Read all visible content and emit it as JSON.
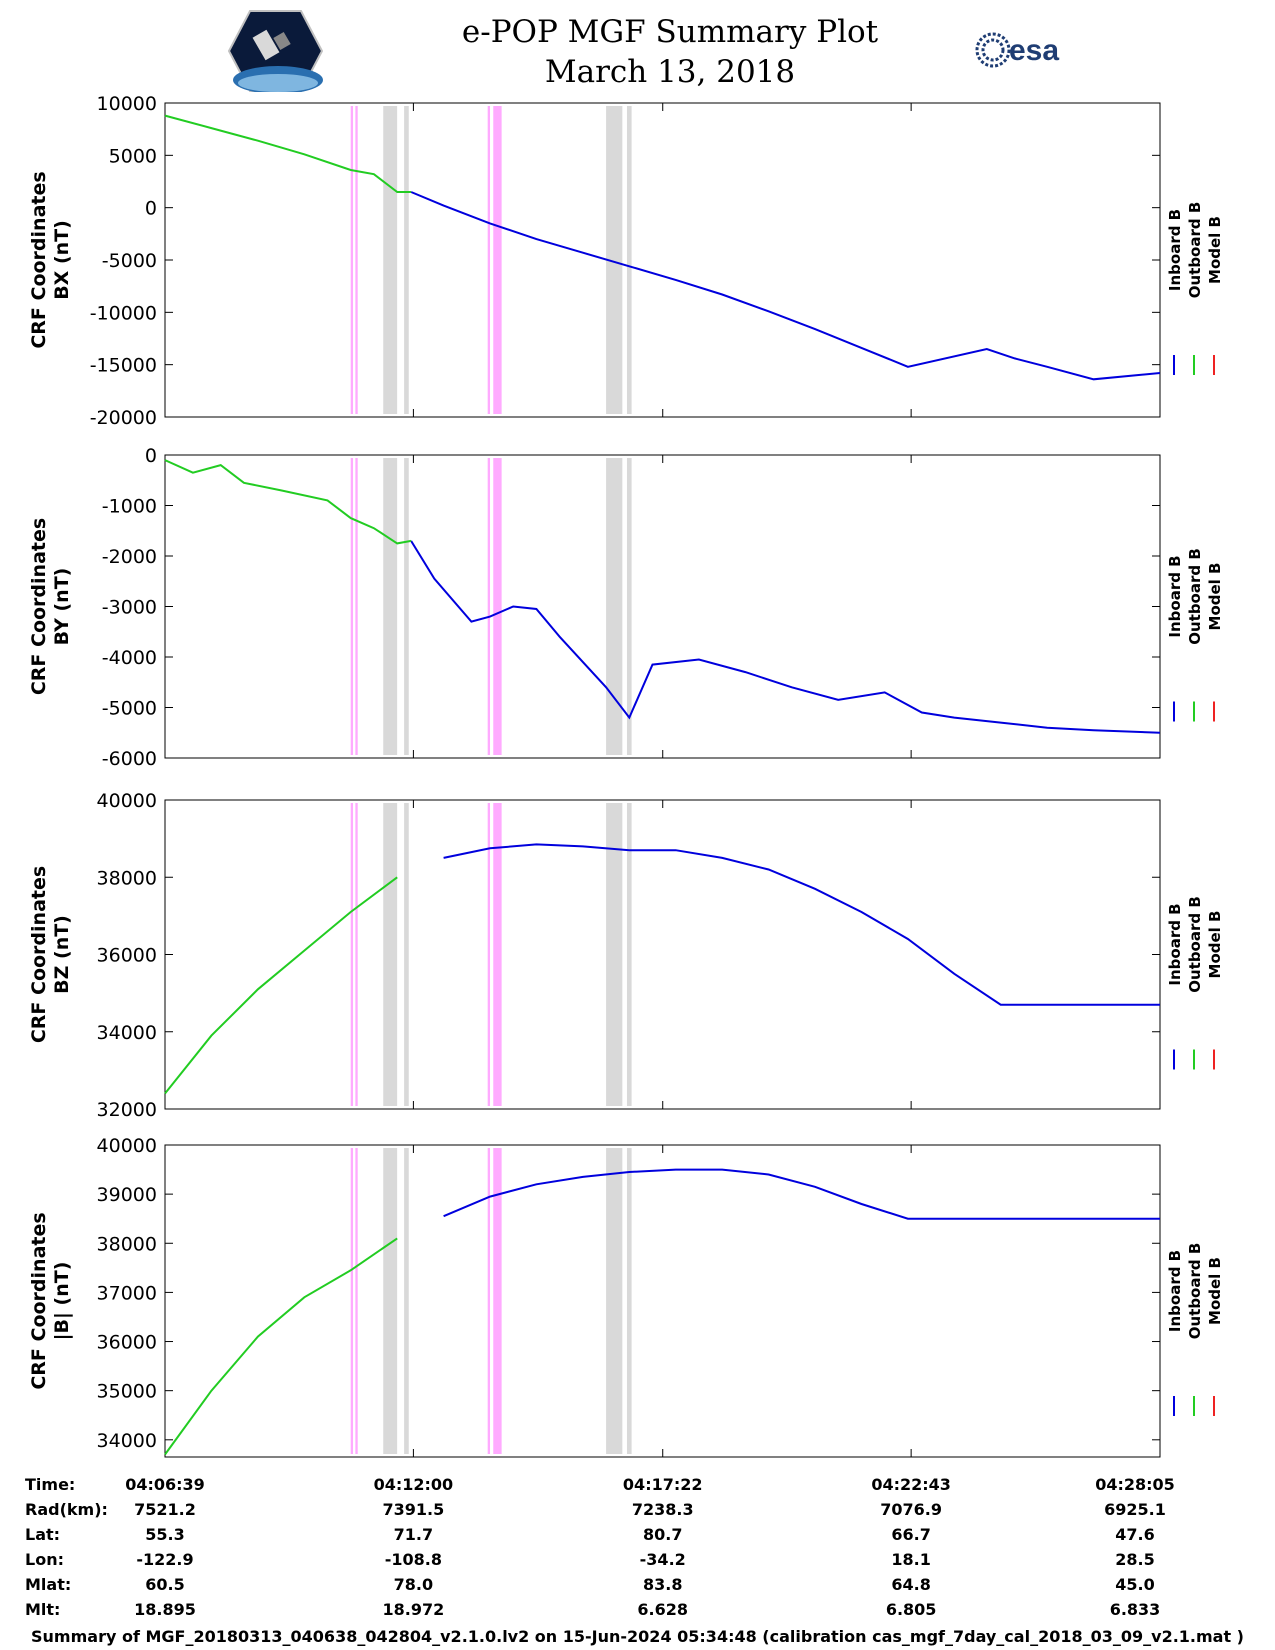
{
  "title": {
    "line1": "e-POP MGF Summary Plot",
    "line2": "March 13, 2018"
  },
  "logos": {
    "left": "cassiope-mission-logo",
    "right_text": "esa"
  },
  "colors": {
    "inboard": "#0000dd",
    "outboard": "#22cc22",
    "model": "#ee2222",
    "gray_band": "#d9d9d9",
    "pink_band": "#ffaaff"
  },
  "legend": [
    "Inboard B",
    "Outboard B",
    "Model B"
  ],
  "bands": {
    "gray": [
      [
        4.7,
        5.0
      ],
      [
        5.15,
        5.25
      ],
      [
        9.5,
        9.85
      ],
      [
        9.95,
        10.05
      ]
    ],
    "pink": [
      [
        4.0,
        4.05
      ],
      [
        4.1,
        4.15
      ],
      [
        6.95,
        7.0
      ],
      [
        7.07,
        7.25
      ]
    ]
  },
  "chart_data": [
    {
      "type": "line",
      "ylabel": "CRF Coordinates BX (nT)",
      "ylabel_lines": [
        "CRF Coordinates",
        "BX (nT)"
      ],
      "ylim": [
        -20000,
        10000
      ],
      "yticks": [
        10000,
        5000,
        0,
        -5000,
        -10000,
        -15000,
        -20000
      ],
      "x_minutes": [
        0,
        1,
        2,
        3,
        4,
        4.5,
        5,
        5.3,
        6,
        7,
        8,
        9,
        10,
        11,
        12,
        13,
        14,
        15,
        16,
        17.7,
        18.3,
        19,
        20,
        21.43
      ],
      "series": [
        {
          "name": "Inboard B",
          "segment": [
            5.3,
            21.43
          ],
          "values": [
            8800,
            7600,
            6400,
            5100,
            3600,
            3200,
            1500,
            1500,
            200,
            -1500,
            -3000,
            -4300,
            -5600,
            -6900,
            -8300,
            -9900,
            -11600,
            -13400,
            -15200,
            -13500,
            -14400,
            -15200,
            -16400,
            -15800
          ]
        },
        {
          "name": "Outboard B",
          "segment": [
            0,
            5.3
          ],
          "values": [
            8800,
            7600,
            6400,
            5100,
            3600,
            3200,
            1500,
            1500,
            200,
            -1500,
            -3000,
            -4300,
            -5600,
            -6900,
            -8300,
            -9900,
            -11600,
            -13400,
            -15200,
            -13500,
            -14400,
            -15200,
            -16400,
            -15800
          ]
        }
      ]
    },
    {
      "type": "line",
      "ylabel": "CRF Coordinates BY (nT)",
      "ylabel_lines": [
        "CRF Coordinates",
        "BY (nT)"
      ],
      "ylim": [
        -6000,
        0
      ],
      "yticks": [
        0,
        -1000,
        -2000,
        -3000,
        -4000,
        -5000,
        -6000
      ],
      "x_minutes": [
        0,
        0.6,
        1.2,
        1.7,
        2.5,
        3.5,
        4.0,
        4.5,
        5.0,
        5.3,
        5.8,
        6.6,
        7.0,
        7.5,
        8.0,
        8.5,
        9.5,
        10.0,
        10.5,
        11.5,
        12.5,
        13.5,
        14.5,
        15.5,
        16.3,
        17.0,
        18.0,
        19.0,
        20.0,
        21.43
      ],
      "series": [
        {
          "name": "Inboard B",
          "segment": [
            5.3,
            21.43
          ],
          "values": [
            -100,
            -350,
            -200,
            -550,
            -700,
            -900,
            -1250,
            -1450,
            -1750,
            -1700,
            -2450,
            -3300,
            -3200,
            -3000,
            -3050,
            -3600,
            -4600,
            -5200,
            -4150,
            -4050,
            -4300,
            -4600,
            -4850,
            -4700,
            -5100,
            -5200,
            -5300,
            -5400,
            -5450,
            -5500
          ]
        },
        {
          "name": "Outboard B",
          "segment": [
            0,
            5.3
          ],
          "values": [
            -100,
            -350,
            -200,
            -550,
            -700,
            -900,
            -1250,
            -1450,
            -1750,
            -1700,
            -2450,
            -3300,
            -3200,
            -3000,
            -3050,
            -3600,
            -4600,
            -5200,
            -4150,
            -4050,
            -4300,
            -4600,
            -4850,
            -4700,
            -5100,
            -5200,
            -5300,
            -5400,
            -5450,
            -5500
          ]
        }
      ]
    },
    {
      "type": "line",
      "ylabel": "CRF Coordinates BZ (nT)",
      "ylabel_lines": [
        "CRF Coordinates",
        "BZ (nT)"
      ],
      "ylim": [
        32000,
        40000
      ],
      "yticks": [
        40000,
        38000,
        36000,
        34000,
        32000
      ],
      "x_minutes": [
        0,
        1,
        2,
        3,
        4,
        5,
        6,
        7,
        8,
        9,
        10,
        11,
        12,
        13,
        14,
        15,
        16,
        17,
        18,
        19,
        20,
        21.43
      ],
      "series": [
        {
          "name": "Inboard B",
          "segment": [
            5.3,
            21.43
          ],
          "values": [
            32400,
            33900,
            35100,
            36100,
            37100,
            38000,
            38500,
            38750,
            38850,
            38800,
            38700,
            38700,
            38500,
            38200,
            37700,
            37100,
            36400,
            35500,
            34700,
            34700,
            34700,
            34700
          ]
        },
        {
          "name": "Outboard B",
          "segment": [
            0,
            5.3
          ],
          "values": [
            32400,
            33900,
            35100,
            36100,
            37100,
            38000,
            38500,
            38750,
            38850,
            38800,
            38700,
            38700,
            38500,
            38200,
            37700,
            37100,
            36400,
            35500,
            34700,
            34700,
            34700,
            34700
          ]
        }
      ]
    },
    {
      "type": "line",
      "ylabel": "CRF Coordinates |B| (nT)",
      "ylabel_lines": [
        "CRF Coordinates",
        "|B| (nT)"
      ],
      "ylim": [
        33650,
        40000
      ],
      "yticks": [
        40000,
        39000,
        38000,
        37000,
        36000,
        35000,
        34000
      ],
      "x_minutes": [
        0,
        1,
        2,
        3,
        4,
        5,
        6,
        7,
        8,
        9,
        10,
        11,
        12,
        13,
        14,
        15,
        16,
        17,
        18,
        19,
        20,
        21.43
      ],
      "series": [
        {
          "name": "Inboard B",
          "segment": [
            5.3,
            21.43
          ],
          "values": [
            33700,
            35000,
            36100,
            36900,
            37450,
            38100,
            38550,
            38950,
            39200,
            39350,
            39450,
            39500,
            39500,
            39400,
            39150,
            38800,
            38500,
            38500,
            38500,
            38500,
            38500,
            38500
          ]
        },
        {
          "name": "Outboard B",
          "segment": [
            0,
            5.3
          ],
          "values": [
            33700,
            35000,
            36100,
            36900,
            37450,
            38100,
            38550,
            38950,
            39200,
            39350,
            39450,
            39500,
            39500,
            39400,
            39150,
            38800,
            38500,
            38500,
            38500,
            38500,
            38500,
            38500
          ]
        }
      ]
    }
  ],
  "ephemeris": {
    "row_labels": [
      "Time:",
      "Rad(km):",
      "Lat:",
      "Lon:",
      "Mlat:",
      "Mlt:"
    ],
    "columns": [
      {
        "time": "04:06:39",
        "rad": "7521.2",
        "lat": "55.3",
        "lon": "-122.9",
        "mlat": "60.5",
        "mlt": "18.895"
      },
      {
        "time": "04:12:00",
        "rad": "7391.5",
        "lat": "71.7",
        "lon": "-108.8",
        "mlat": "78.0",
        "mlt": "18.972"
      },
      {
        "time": "04:17:22",
        "rad": "7238.3",
        "lat": "80.7",
        "lon": "-34.2",
        "mlat": "83.8",
        "mlt": "6.628"
      },
      {
        "time": "04:22:43",
        "rad": "7076.9",
        "lat": "66.7",
        "lon": "18.1",
        "mlat": "64.8",
        "mlt": "6.805"
      },
      {
        "time": "04:28:05",
        "rad": "6925.1",
        "lat": "47.6",
        "lon": "28.5",
        "mlat": "45.0",
        "mlt": "6.833"
      }
    ]
  },
  "footer": "Summary of MGF_20180313_040638_042804_v2.1.0.lv2 on 15-Jun-2024 05:34:48 (calibration cas_mgf_7day_cal_2018_03_09_v2.1.mat )"
}
